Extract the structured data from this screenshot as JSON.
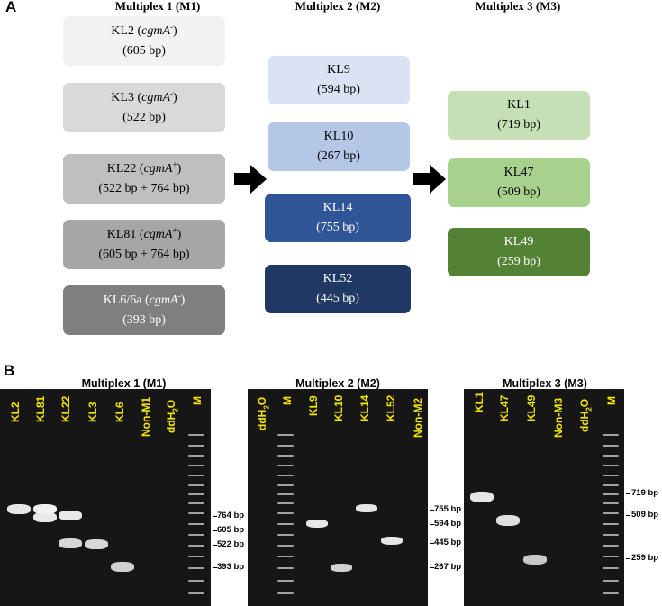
{
  "panel_a": {
    "letter": "A",
    "columns": [
      {
        "title": "Multiplex 1 (M1)",
        "boxes": [
          {
            "name": "KL2 (",
            "gene": "cgmA",
            "sup": "-",
            "close": ")",
            "size": "(605 bp)",
            "color": "#f2f2f2",
            "text_color": "#000000"
          },
          {
            "name": "KL3 (",
            "gene": "cgmA",
            "sup": "-",
            "close": ")",
            "size": "(522 bp)",
            "color": "#d9d9d9",
            "text_color": "#000000"
          },
          {
            "name": "KL22 (",
            "gene": "cgmA",
            "sup": "+",
            "close": ")",
            "size": "(522 bp + 764 bp)",
            "color": "#bfbfbf",
            "text_color": "#000000"
          },
          {
            "name": "KL81 (",
            "gene": "cgmA",
            "sup": "+",
            "close": ")",
            "size": "(605 bp + 764 bp)",
            "color": "#a6a6a6",
            "text_color": "#000000"
          },
          {
            "name": "KL6/6a (",
            "gene": "cgmA",
            "sup": "-",
            "close": ")",
            "size": "(393 bp)",
            "color": "#7f7f7f",
            "text_color": "#ffffff"
          }
        ]
      },
      {
        "title": "Multiplex 2 (M2)",
        "boxes": [
          {
            "name": "KL9",
            "size": "(594 bp)",
            "color": "#dae3f3",
            "text_color": "#000000"
          },
          {
            "name": "KL10",
            "size": "(267 bp)",
            "color": "#b4c7e7",
            "text_color": "#000000"
          },
          {
            "name": "KL14",
            "size": "(755 bp)",
            "color": "#2f5597",
            "text_color": "#ffffff"
          },
          {
            "name": "KL52",
            "size": "(445 bp)",
            "color": "#203864",
            "text_color": "#ffffff"
          }
        ]
      },
      {
        "title": "Multiplex 3 (M3)",
        "boxes": [
          {
            "name": "KL1",
            "size": "(719 bp)",
            "color": "#c5e0b4",
            "text_color": "#000000"
          },
          {
            "name": "KL47",
            "size": "(509 bp)",
            "color": "#a9d18e",
            "text_color": "#000000"
          },
          {
            "name": "KL49",
            "size": "(259 bp)",
            "color": "#548235",
            "text_color": "#ffffff"
          }
        ]
      }
    ]
  },
  "panel_b": {
    "letter": "B",
    "gels": [
      {
        "title": "Multiplex 1 (M1)",
        "lanes": [
          "KL2",
          "KL81",
          "KL22",
          "KL3",
          "KL6",
          "Non-M1",
          "ddH2O",
          "M"
        ],
        "markers": [
          "764 bp",
          "605 bp",
          "522 bp",
          "393 bp"
        ]
      },
      {
        "title": "Multiplex 2 (M2)",
        "lanes": [
          "ddH2O",
          "M",
          "KL9",
          "KL10",
          "KL14",
          "KL52",
          "Non-M2"
        ],
        "markers": [
          "755 bp",
          "594 bp",
          "445 bp",
          "267 bp"
        ]
      },
      {
        "title": "Multiplex 3 (M3)",
        "lanes": [
          "KL1",
          "KL47",
          "KL49",
          "Non-M3",
          "ddH2O",
          "M"
        ],
        "markers": [
          "719 bp",
          "509 bp",
          "259 bp"
        ]
      }
    ]
  }
}
